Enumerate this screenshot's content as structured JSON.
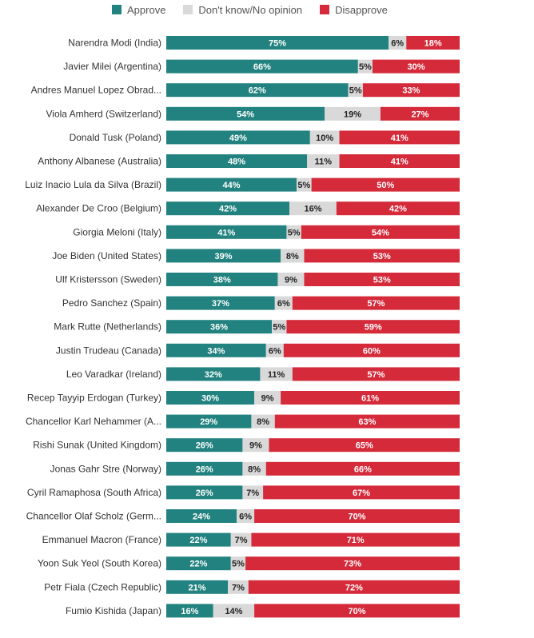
{
  "colors": {
    "approve": "#21827f",
    "dont_know": "#d9d9d9",
    "disapprove": "#d42a3a"
  },
  "legend": [
    {
      "key": "approve",
      "label": "Approve"
    },
    {
      "key": "dont_know",
      "label": "Don't know/No opinion"
    },
    {
      "key": "disapprove",
      "label": "Disapprove"
    }
  ],
  "chart_data": {
    "type": "bar",
    "orientation": "horizontal",
    "stacked": true,
    "legend_position": "top",
    "categories": [
      "Narendra Modi (India)",
      "Javier Milei (Argentina)",
      "Andres Manuel Lopez Obrad...",
      "Viola Amherd (Switzerland)",
      "Donald Tusk (Poland)",
      "Anthony Albanese (Australia)",
      "Luiz Inacio Lula da Silva (Brazil)",
      "Alexander De Croo (Belgium)",
      "Giorgia Meloni (Italy)",
      "Joe Biden (United States)",
      "Ulf Kristersson (Sweden)",
      "Pedro Sanchez (Spain)",
      "Mark Rutte (Netherlands)",
      "Justin Trudeau (Canada)",
      "Leo Varadkar (Ireland)",
      "Recep Tayyip Erdogan (Turkey)",
      "Chancellor Karl Nehammer (A...",
      "Rishi Sunak (United Kingdom)",
      "Jonas Gahr Stre (Norway)",
      "Cyril Ramaphosa (South Africa)",
      "Chancellor Olaf Scholz (Germ...",
      "Emmanuel Macron (France)",
      "Yoon Suk Yeol (South Korea)",
      "Petr Fiala (Czech Republic)",
      "Fumio Kishida (Japan)"
    ],
    "series": [
      {
        "name": "Approve",
        "color_key": "approve",
        "values": [
          75,
          66,
          62,
          54,
          49,
          48,
          44,
          42,
          41,
          39,
          38,
          37,
          36,
          34,
          32,
          30,
          29,
          26,
          26,
          26,
          24,
          22,
          22,
          21,
          16
        ]
      },
      {
        "name": "Don't know/No opinion",
        "color_key": "dont_know",
        "values": [
          6,
          5,
          5,
          19,
          10,
          11,
          5,
          16,
          5,
          8,
          9,
          6,
          5,
          6,
          11,
          9,
          8,
          9,
          8,
          7,
          6,
          7,
          5,
          7,
          14
        ]
      },
      {
        "name": "Disapprove",
        "color_key": "disapprove",
        "values": [
          18,
          30,
          33,
          27,
          41,
          41,
          50,
          42,
          54,
          53,
          53,
          57,
          59,
          60,
          57,
          61,
          63,
          65,
          66,
          67,
          70,
          71,
          73,
          72,
          70
        ]
      }
    ],
    "value_suffix": "%"
  }
}
